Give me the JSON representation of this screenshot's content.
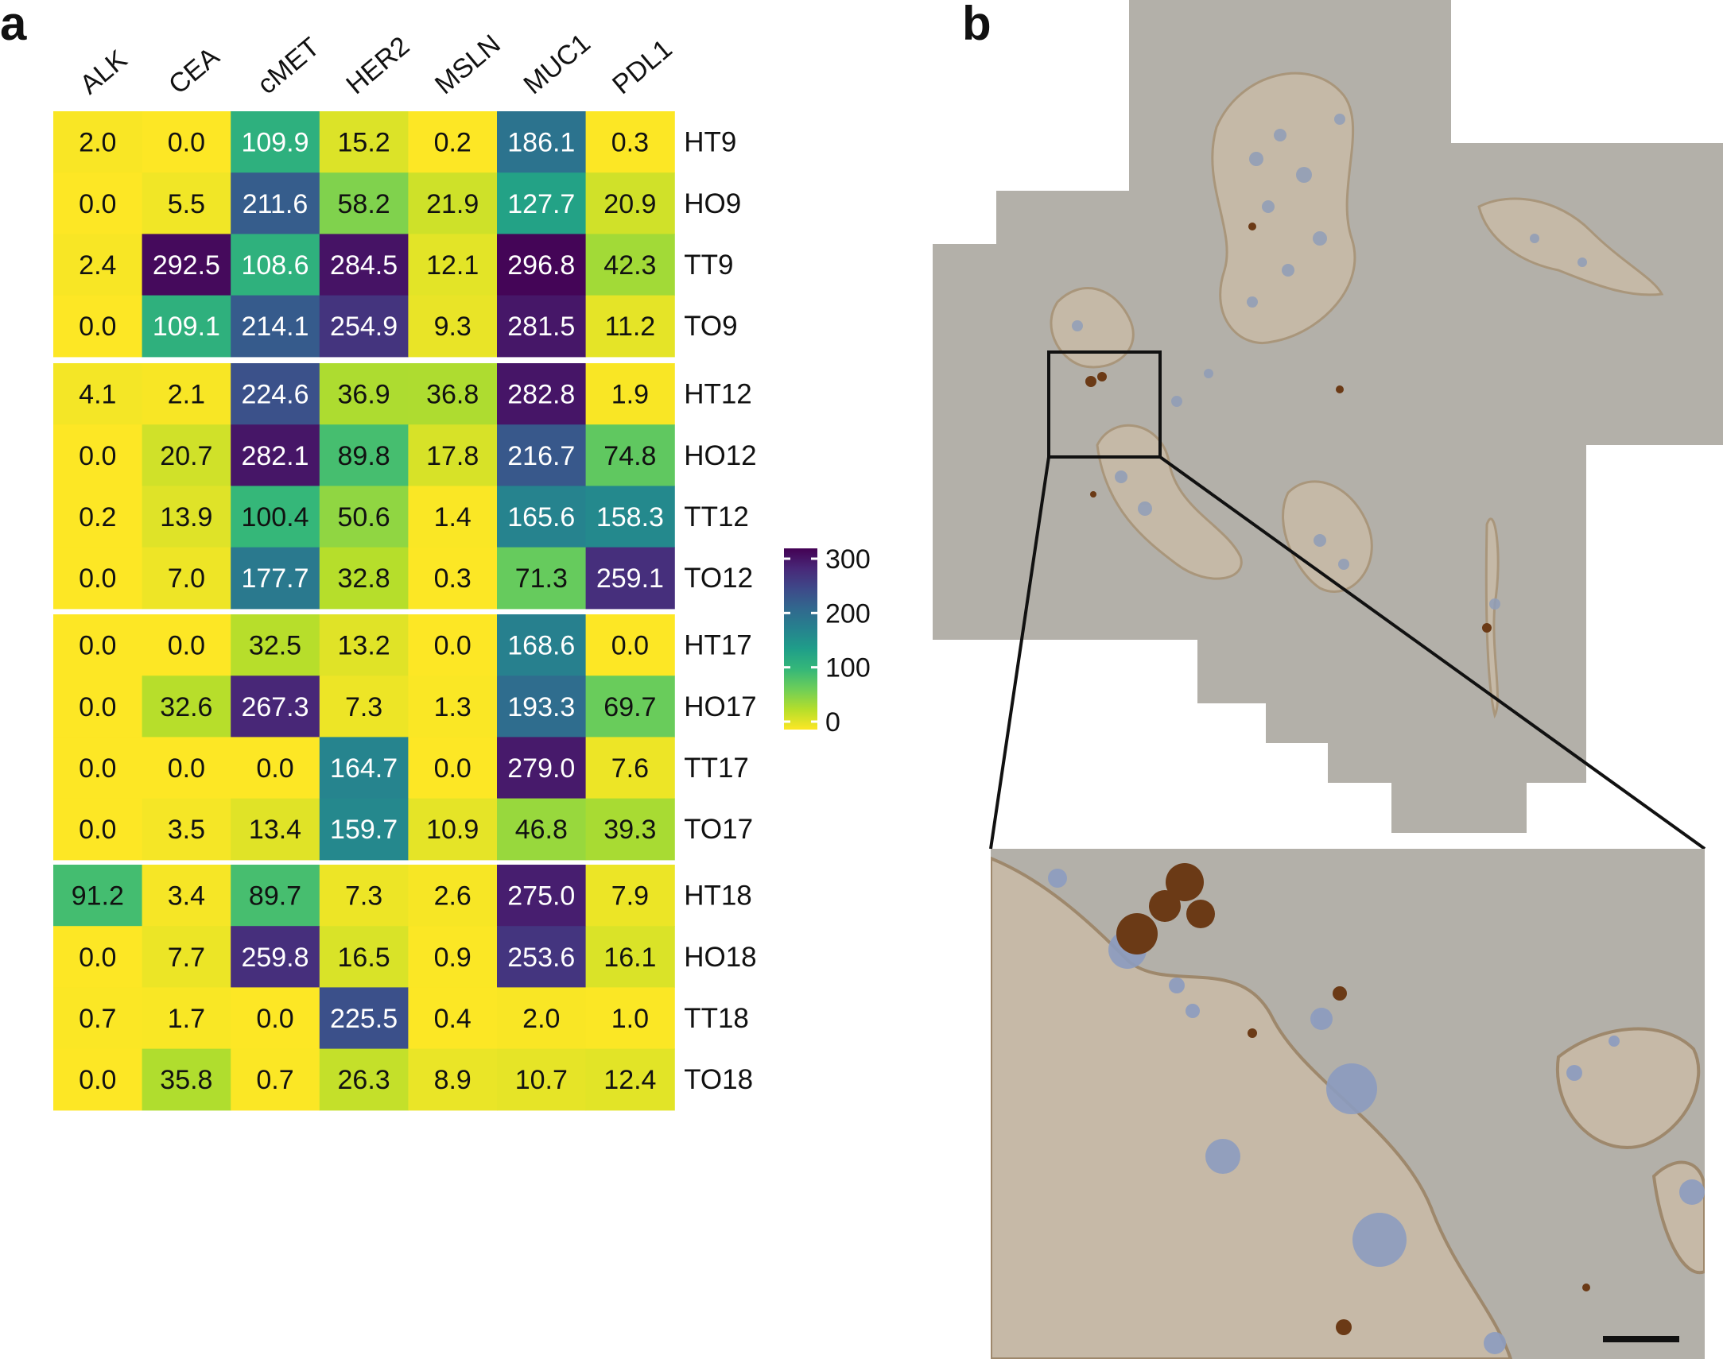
{
  "panels": {
    "a": "a",
    "b": "b"
  },
  "chart_data": {
    "type": "heatmap",
    "title": "",
    "columns": [
      "ALK",
      "CEA",
      "cMET",
      "HER2",
      "MSLN",
      "MUC1",
      "PDL1"
    ],
    "rows": [
      "HT9",
      "HO9",
      "TT9",
      "TO9",
      "HT12",
      "HO12",
      "TT12",
      "TO12",
      "HT17",
      "HO17",
      "TT17",
      "TO17",
      "HT18",
      "HO18",
      "TT18",
      "TO18"
    ],
    "groups": [
      [
        "HT9",
        "HO9",
        "TT9",
        "TO9"
      ],
      [
        "HT12",
        "HO12",
        "TT12",
        "TO12"
      ],
      [
        "HT17",
        "HO17",
        "TT17",
        "TO17"
      ],
      [
        "HT18",
        "HO18",
        "TT18",
        "TO18"
      ]
    ],
    "values": [
      [
        2.0,
        0.0,
        109.9,
        15.2,
        0.2,
        186.1,
        0.3
      ],
      [
        0.0,
        5.5,
        211.6,
        58.2,
        21.9,
        127.7,
        20.9
      ],
      [
        2.4,
        292.5,
        108.6,
        284.5,
        12.1,
        296.8,
        42.3
      ],
      [
        0.0,
        109.1,
        214.1,
        254.9,
        9.3,
        281.5,
        11.2
      ],
      [
        4.1,
        2.1,
        224.6,
        36.9,
        36.8,
        282.8,
        1.9
      ],
      [
        0.0,
        20.7,
        282.1,
        89.8,
        17.8,
        216.7,
        74.8
      ],
      [
        0.2,
        13.9,
        100.4,
        50.6,
        1.4,
        165.6,
        158.3
      ],
      [
        0.0,
        7.0,
        177.7,
        32.8,
        0.3,
        71.3,
        259.1
      ],
      [
        0.0,
        0.0,
        32.5,
        13.2,
        0.0,
        168.6,
        0.0
      ],
      [
        0.0,
        32.6,
        267.3,
        7.3,
        1.3,
        193.3,
        69.7
      ],
      [
        0.0,
        0.0,
        0.0,
        164.7,
        0.0,
        279.0,
        7.6
      ],
      [
        0.0,
        3.5,
        13.4,
        159.7,
        10.9,
        46.8,
        39.3
      ],
      [
        91.2,
        3.4,
        89.7,
        7.3,
        2.6,
        275.0,
        7.9
      ],
      [
        0.0,
        7.7,
        259.8,
        16.5,
        0.9,
        253.6,
        16.1
      ],
      [
        0.7,
        1.7,
        0.0,
        225.5,
        0.4,
        2.0,
        1.0
      ],
      [
        0.0,
        35.8,
        0.7,
        26.3,
        8.9,
        10.7,
        12.4
      ]
    ],
    "value_labels": [
      [
        "2.0",
        "0.0",
        "109.9",
        "15.2",
        "0.2",
        "186.1",
        "0.3"
      ],
      [
        "0.0",
        "5.5",
        "211.6",
        "58.2",
        "21.9",
        "127.7",
        "20.9"
      ],
      [
        "2.4",
        "292.5",
        "108.6",
        "284.5",
        "12.1",
        "296.8",
        "42.3"
      ],
      [
        "0.0",
        "109.1",
        "214.1",
        "254.9",
        "9.3",
        "281.5",
        "11.2"
      ],
      [
        "4.1",
        "2.1",
        "224.6",
        "36.9",
        "36.8",
        "282.8",
        "1.9"
      ],
      [
        "0.0",
        "20.7",
        "282.1",
        "89.8",
        "17.8",
        "216.7",
        "74.8"
      ],
      [
        "0.2",
        "13.9",
        "100.4",
        "50.6",
        "1.4",
        "165.6",
        "158.3"
      ],
      [
        "0.0",
        "7.0",
        "177.7",
        "32.8",
        "0.3",
        "71.3",
        "259.1"
      ],
      [
        "0.0",
        "0.0",
        "32.5",
        "13.2",
        "0.0",
        "168.6",
        "0.0"
      ],
      [
        "0.0",
        "32.6",
        "267.3",
        "7.3",
        "1.3",
        "193.3",
        "69.7"
      ],
      [
        "0.0",
        "0.0",
        "0.0",
        "164.7",
        "0.0",
        "279.0",
        "7.6"
      ],
      [
        "0.0",
        "3.5",
        "13.4",
        "159.7",
        "10.9",
        "46.8",
        "39.3"
      ],
      [
        "91.2",
        "3.4",
        "89.7",
        "7.3",
        "2.6",
        "275.0",
        "7.9"
      ],
      [
        "0.0",
        "7.7",
        "259.8",
        "16.5",
        "0.9",
        "253.6",
        "16.1"
      ],
      [
        "0.7",
        "1.7",
        "0.0",
        "225.5",
        "0.4",
        "2.0",
        "1.0"
      ],
      [
        "0.0",
        "35.8",
        "0.7",
        "26.3",
        "8.9",
        "10.7",
        "12.4"
      ]
    ],
    "colorbar": {
      "ticks": [
        "0",
        "100",
        "200",
        "300"
      ],
      "range": [
        0,
        300
      ],
      "colormap": "viridis-reversed"
    },
    "xlabel": "",
    "ylabel": ""
  },
  "colors": {
    "viridis": [
      "#440154",
      "#482878",
      "#3e4989",
      "#31688e",
      "#26828e",
      "#1f9e89",
      "#35b779",
      "#6ece58",
      "#b5de2b",
      "#fde725"
    ],
    "micrograph_background": "#b3b0a9",
    "cell_body": "#c7b9a4",
    "hematoxylin_blue": "#8f9db8",
    "dab_brown": "#6b3a16"
  }
}
